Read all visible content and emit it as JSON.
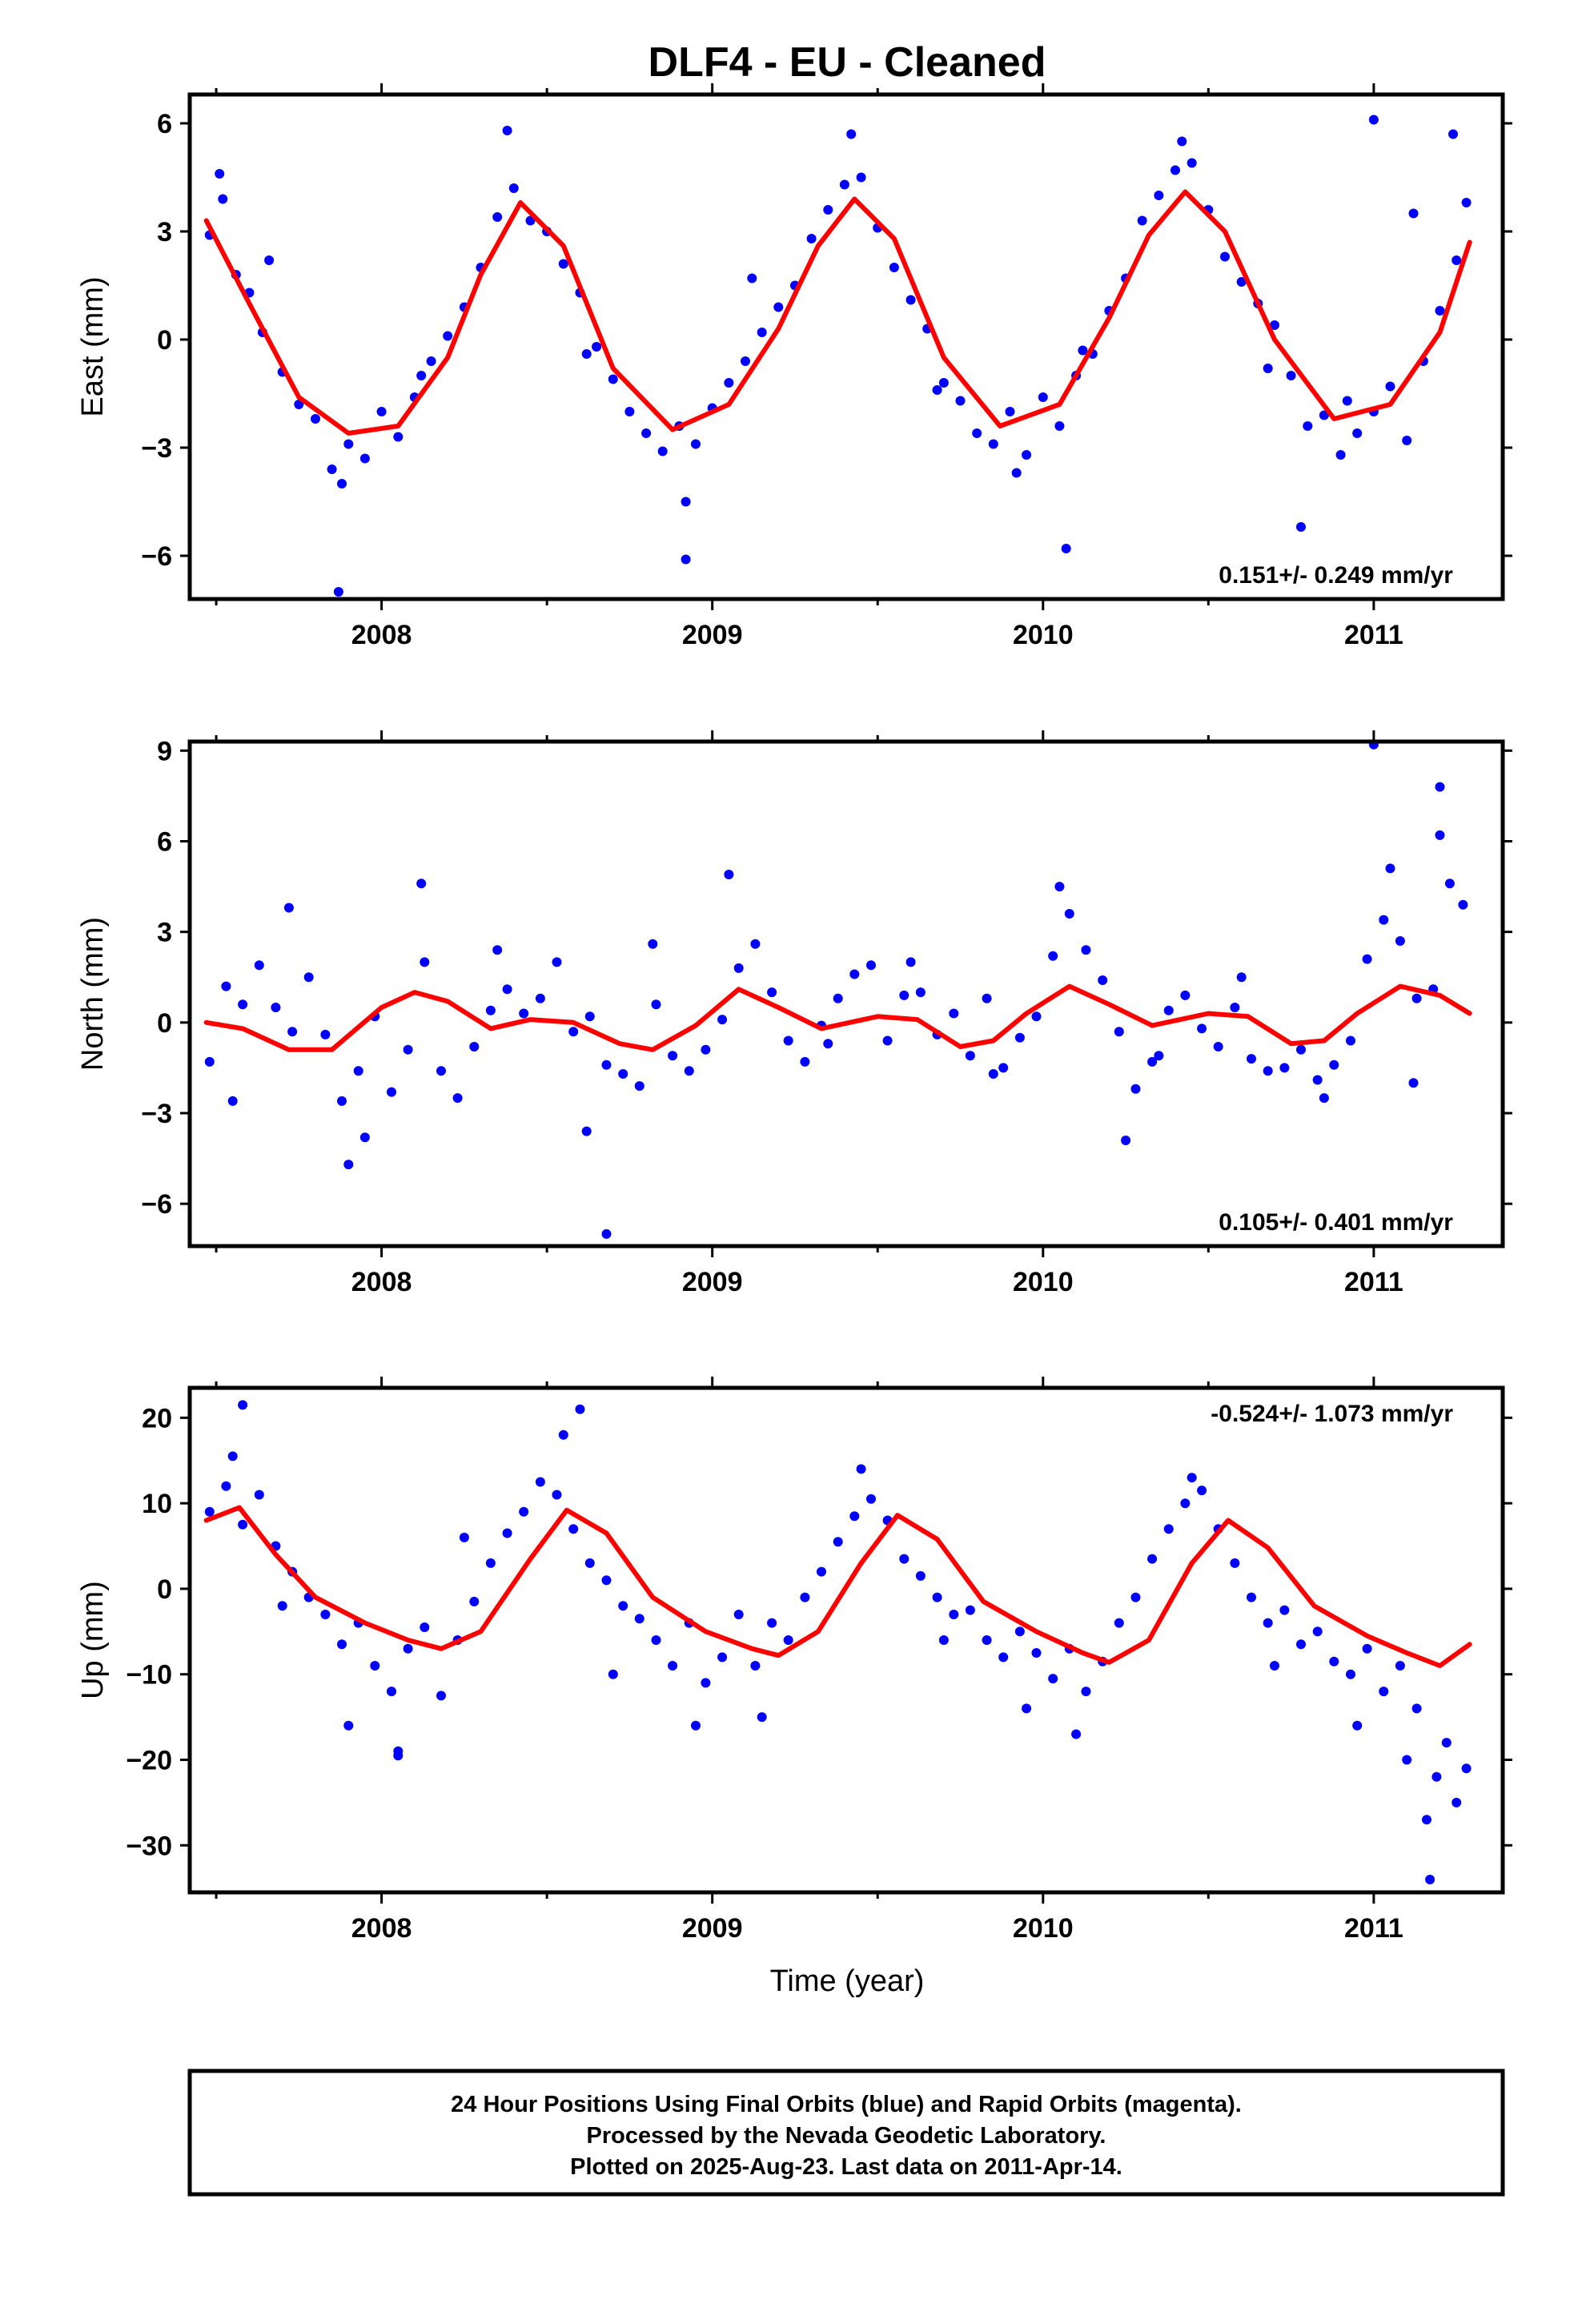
{
  "title": "DLF4  - EU - Cleaned",
  "xlabel": "Time (year)",
  "footer": {
    "line1": "24 Hour Positions Using Final Orbits (blue) and Rapid Orbits (magenta).",
    "line2": "Processed by the Nevada Geodetic Laboratory.",
    "line3": "Plotted on 2025-Aug-23. Last data on 2011-Apr-14."
  },
  "colors": {
    "points": "#0000ff",
    "fit": "#ff0000",
    "frame": "#000000"
  },
  "chart_data": [
    {
      "type": "scatter",
      "name": "East",
      "ylabel": "East (mm)",
      "rate": "0.151+/- 0.249 mm/yr",
      "rate_position": "bottom-right",
      "xlim": [
        2007.42,
        2011.39
      ],
      "ylim": [
        -7.2,
        6.8
      ],
      "x_ticks": [
        "2008",
        "2009",
        "2010",
        "2011"
      ],
      "y_ticks": [
        "6",
        "3",
        "0",
        "−3",
        "−6"
      ],
      "y_tick_values": [
        6,
        3,
        0,
        -3,
        -6
      ],
      "fit": {
        "x": [
          2007.47,
          2007.6,
          2007.75,
          2007.9,
          2008.05,
          2008.2,
          2008.3,
          2008.42,
          2008.55,
          2008.7,
          2008.88,
          2009.05,
          2009.2,
          2009.32,
          2009.43,
          2009.55,
          2009.7,
          2009.87,
          2010.05,
          2010.2,
          2010.32,
          2010.43,
          2010.55,
          2010.7,
          2010.88,
          2011.05,
          2011.2,
          2011.29
        ],
        "y": [
          3.3,
          1.0,
          -1.6,
          -2.6,
          -2.4,
          -0.5,
          1.8,
          3.8,
          2.6,
          -0.8,
          -2.5,
          -1.8,
          0.3,
          2.6,
          3.9,
          2.8,
          -0.5,
          -2.4,
          -1.8,
          0.6,
          2.9,
          4.1,
          3.0,
          0.0,
          -2.2,
          -1.8,
          0.2,
          2.7
        ]
      },
      "points": {
        "x": [
          2007.48,
          2007.52,
          2007.56,
          2007.6,
          2007.64,
          2007.7,
          2007.75,
          2007.8,
          2007.85,
          2007.9,
          2007.95,
          2008.0,
          2008.05,
          2008.1,
          2008.15,
          2008.2,
          2008.25,
          2008.3,
          2008.35,
          2008.4,
          2008.45,
          2008.5,
          2008.55,
          2008.6,
          2008.65,
          2008.7,
          2008.75,
          2008.8,
          2008.85,
          2008.9,
          2008.95,
          2009.0,
          2009.05,
          2009.1,
          2009.15,
          2009.2,
          2009.25,
          2009.3,
          2009.35,
          2009.4,
          2009.45,
          2009.5,
          2009.55,
          2009.6,
          2009.65,
          2009.7,
          2009.75,
          2009.8,
          2009.85,
          2009.9,
          2009.95,
          2010.0,
          2010.05,
          2010.1,
          2010.15,
          2010.2,
          2010.25,
          2010.3,
          2010.35,
          2010.4,
          2010.45,
          2010.5,
          2010.55,
          2010.6,
          2010.65,
          2010.7,
          2010.75,
          2010.8,
          2010.85,
          2010.9,
          2010.95,
          2011.0,
          2011.05,
          2011.1,
          2011.15,
          2011.2,
          2011.25,
          2011.28,
          2007.51,
          2007.66,
          2007.88,
          2008.12,
          2008.38,
          2008.62,
          2008.92,
          2009.12,
          2009.42,
          2009.68,
          2009.92,
          2010.12,
          2010.42,
          2010.68,
          2010.92,
          2011.12,
          2007.87,
          2008.92,
          2010.07,
          2010.78,
          2011.0,
          2011.24
        ],
        "y": [
          2.9,
          3.9,
          1.8,
          1.3,
          0.2,
          -0.9,
          -1.8,
          -2.2,
          -3.6,
          -2.9,
          -3.3,
          -2.0,
          -2.7,
          -1.6,
          -0.6,
          0.1,
          0.9,
          2.0,
          3.4,
          4.2,
          3.3,
          3.0,
          2.1,
          1.3,
          -0.2,
          -1.1,
          -2.0,
          -2.6,
          -3.1,
          -2.4,
          -2.9,
          -1.9,
          -1.2,
          -0.6,
          0.2,
          0.9,
          1.5,
          2.8,
          3.6,
          4.3,
          4.5,
          3.1,
          2.0,
          1.1,
          0.3,
          -1.2,
          -1.7,
          -2.6,
          -2.9,
          -2.0,
          -3.2,
          -1.6,
          -2.4,
          -1.0,
          -0.4,
          0.8,
          1.7,
          3.3,
          4.0,
          4.7,
          4.9,
          3.6,
          2.3,
          1.6,
          1.0,
          0.4,
          -1.0,
          -2.4,
          -2.1,
          -3.2,
          -2.6,
          -2.0,
          -1.3,
          -2.8,
          -0.6,
          0.8,
          2.2,
          3.8,
          4.6,
          2.2,
          -4.0,
          -1.0,
          5.8,
          -0.4,
          -4.5,
          1.7,
          5.7,
          -1.4,
          -3.7,
          -0.3,
          5.5,
          -0.8,
          -1.7,
          3.5,
          -7.0,
          -6.1,
          -5.8,
          -5.2,
          6.1,
          5.7
        ]
      }
    },
    {
      "type": "scatter",
      "name": "North",
      "ylabel": "North (mm)",
      "rate": "0.105+/- 0.401 mm/yr",
      "rate_position": "bottom-right",
      "xlim": [
        2007.42,
        2011.39
      ],
      "ylim": [
        -7.4,
        9.3
      ],
      "x_ticks": [
        "2008",
        "2009",
        "2010",
        "2011"
      ],
      "y_ticks": [
        "9",
        "6",
        "3",
        "0",
        "−3",
        "−6"
      ],
      "y_tick_values": [
        9,
        6,
        3,
        0,
        -3,
        -6
      ],
      "fit": {
        "x": [
          2007.47,
          2007.58,
          2007.72,
          2007.85,
          2008.0,
          2008.1,
          2008.2,
          2008.33,
          2008.45,
          2008.58,
          2008.72,
          2008.82,
          2008.95,
          2009.08,
          2009.2,
          2009.33,
          2009.5,
          2009.62,
          2009.75,
          2009.85,
          2009.95,
          2010.08,
          2010.2,
          2010.33,
          2010.5,
          2010.62,
          2010.75,
          2010.85,
          2010.95,
          2011.08,
          2011.2,
          2011.29
        ],
        "y": [
          0.0,
          -0.2,
          -0.9,
          -0.9,
          0.5,
          1.0,
          0.7,
          -0.2,
          0.1,
          0.0,
          -0.7,
          -0.9,
          -0.1,
          1.1,
          0.5,
          -0.2,
          0.2,
          0.1,
          -0.8,
          -0.6,
          0.3,
          1.2,
          0.6,
          -0.1,
          0.3,
          0.2,
          -0.7,
          -0.6,
          0.3,
          1.2,
          0.9,
          0.3
        ]
      },
      "points": {
        "x": [
          2007.48,
          2007.53,
          2007.58,
          2007.63,
          2007.68,
          2007.73,
          2007.78,
          2007.83,
          2007.88,
          2007.93,
          2007.98,
          2008.03,
          2008.08,
          2008.13,
          2008.18,
          2008.23,
          2008.28,
          2008.33,
          2008.38,
          2008.43,
          2008.48,
          2008.53,
          2008.58,
          2008.63,
          2008.68,
          2008.73,
          2008.78,
          2008.83,
          2008.88,
          2008.93,
          2008.98,
          2009.03,
          2009.08,
          2009.13,
          2009.18,
          2009.23,
          2009.28,
          2009.33,
          2009.38,
          2009.43,
          2009.48,
          2009.53,
          2009.58,
          2009.63,
          2009.68,
          2009.73,
          2009.78,
          2009.83,
          2009.88,
          2009.93,
          2009.98,
          2010.03,
          2010.08,
          2010.13,
          2010.18,
          2010.23,
          2010.28,
          2010.33,
          2010.38,
          2010.43,
          2010.48,
          2010.53,
          2010.58,
          2010.63,
          2010.68,
          2010.73,
          2010.78,
          2010.83,
          2010.88,
          2010.93,
          2010.98,
          2011.03,
          2011.08,
          2011.13,
          2011.18,
          2011.23,
          2011.27,
          2007.55,
          2007.72,
          2007.95,
          2008.12,
          2008.35,
          2008.62,
          2008.82,
          2009.05,
          2009.35,
          2009.6,
          2009.85,
          2010.05,
          2010.35,
          2010.6,
          2010.85,
          2011.05,
          2011.2,
          2007.9,
          2008.68,
          2010.25,
          2011.12,
          2011.0,
          2011.2
        ],
        "y": [
          -1.3,
          1.2,
          0.6,
          1.9,
          0.5,
          -0.3,
          1.5,
          -0.4,
          -2.6,
          -1.6,
          0.2,
          -2.3,
          -0.9,
          2.0,
          -1.6,
          -2.5,
          -0.8,
          0.4,
          1.1,
          0.3,
          0.8,
          2.0,
          -0.3,
          0.2,
          -1.4,
          -1.7,
          -2.1,
          0.6,
          -1.1,
          -1.6,
          -0.9,
          0.1,
          1.8,
          2.6,
          1.0,
          -0.6,
          -1.3,
          -0.1,
          0.8,
          1.6,
          1.9,
          -0.6,
          0.9,
          1.0,
          -0.4,
          0.3,
          -1.1,
          0.8,
          -1.5,
          -0.5,
          0.2,
          2.2,
          3.6,
          2.4,
          1.4,
          -0.3,
          -2.2,
          -1.3,
          0.4,
          0.9,
          -0.2,
          -0.8,
          0.5,
          -1.2,
          -1.6,
          -1.5,
          -0.9,
          -1.9,
          -1.4,
          -0.6,
          2.1,
          3.4,
          2.7,
          0.8,
          1.1,
          4.6,
          3.9,
          -2.6,
          3.8,
          -3.8,
          4.6,
          2.4,
          -3.6,
          2.6,
          4.9,
          -0.7,
          2.0,
          -1.7,
          4.5,
          -1.1,
          1.5,
          -2.5,
          5.1,
          6.2,
          -4.7,
          -7.0,
          -3.9,
          -2.0,
          9.2,
          7.8
        ]
      }
    },
    {
      "type": "scatter",
      "name": "Up",
      "ylabel": "Up (mm)",
      "rate": "-0.524+/- 1.073 mm/yr",
      "rate_position": "top-right",
      "xlim": [
        2007.42,
        2011.39
      ],
      "ylim": [
        -35.5,
        23.5
      ],
      "x_ticks": [
        "2008",
        "2009",
        "2010",
        "2011"
      ],
      "y_ticks": [
        "20",
        "10",
        "0",
        "−10",
        "−20",
        "−30"
      ],
      "y_tick_values": [
        20,
        10,
        0,
        -10,
        -20,
        -30
      ],
      "fit": {
        "x": [
          2007.47,
          2007.57,
          2007.68,
          2007.8,
          2007.95,
          2008.08,
          2008.18,
          2008.3,
          2008.45,
          2008.56,
          2008.68,
          2008.82,
          2008.98,
          2009.12,
          2009.2,
          2009.32,
          2009.45,
          2009.56,
          2009.68,
          2009.82,
          2009.98,
          2010.12,
          2010.2,
          2010.32,
          2010.45,
          2010.56,
          2010.68,
          2010.82,
          2010.98,
          2011.1,
          2011.2,
          2011.29
        ],
        "y": [
          8.0,
          9.5,
          4.0,
          -1.0,
          -4.0,
          -6.0,
          -7.0,
          -5.0,
          3.5,
          9.2,
          6.5,
          -1.0,
          -5.0,
          -7.0,
          -7.8,
          -5.0,
          3.0,
          8.6,
          5.8,
          -1.5,
          -5.0,
          -7.5,
          -8.6,
          -6.0,
          3.0,
          8.0,
          4.8,
          -2.0,
          -5.5,
          -7.5,
          -9.0,
          -6.5
        ]
      },
      "points": {
        "x": [
          2007.48,
          2007.53,
          2007.58,
          2007.63,
          2007.68,
          2007.73,
          2007.78,
          2007.83,
          2007.88,
          2007.93,
          2007.98,
          2008.03,
          2008.08,
          2008.13,
          2008.18,
          2008.23,
          2008.28,
          2008.33,
          2008.38,
          2008.43,
          2008.48,
          2008.53,
          2008.58,
          2008.63,
          2008.68,
          2008.73,
          2008.78,
          2008.83,
          2008.88,
          2008.93,
          2008.98,
          2009.03,
          2009.08,
          2009.13,
          2009.18,
          2009.23,
          2009.28,
          2009.33,
          2009.38,
          2009.43,
          2009.48,
          2009.53,
          2009.58,
          2009.63,
          2009.68,
          2009.73,
          2009.78,
          2009.83,
          2009.88,
          2009.93,
          2009.98,
          2010.03,
          2010.08,
          2010.13,
          2010.18,
          2010.23,
          2010.28,
          2010.33,
          2010.38,
          2010.43,
          2010.48,
          2010.53,
          2010.58,
          2010.63,
          2010.68,
          2010.73,
          2010.78,
          2010.83,
          2010.88,
          2010.93,
          2010.98,
          2011.03,
          2011.08,
          2011.13,
          2011.16,
          2011.19,
          2011.22,
          2011.25,
          2011.28,
          2007.55,
          2007.7,
          2007.9,
          2008.05,
          2008.25,
          2008.55,
          2008.7,
          2008.95,
          2009.15,
          2009.45,
          2009.7,
          2009.95,
          2010.1,
          2010.45,
          2010.7,
          2010.95,
          2011.1,
          2007.58,
          2008.6,
          2008.05,
          2011.17
        ],
        "y": [
          9.0,
          12.0,
          7.5,
          11.0,
          5.0,
          2.0,
          -1.0,
          -3.0,
          -6.5,
          -4.0,
          -9.0,
          -12.0,
          -7.0,
          -4.5,
          -12.5,
          -6.0,
          -1.5,
          3.0,
          6.5,
          9.0,
          12.5,
          11.0,
          7.0,
          3.0,
          1.0,
          -2.0,
          -3.5,
          -6.0,
          -9.0,
          -4.0,
          -11.0,
          -8.0,
          -3.0,
          -9.0,
          -4.0,
          -6.0,
          -1.0,
          2.0,
          5.5,
          8.5,
          10.5,
          8.0,
          3.5,
          1.5,
          -1.0,
          -3.0,
          -2.5,
          -6.0,
          -8.0,
          -5.0,
          -7.5,
          -10.5,
          -7.0,
          -12.0,
          -8.5,
          -4.0,
          -1.0,
          3.5,
          7.0,
          10.0,
          11.5,
          7.0,
          3.0,
          -1.0,
          -4.0,
          -2.5,
          -6.5,
          -5.0,
          -8.5,
          -10.0,
          -7.0,
          -12.0,
          -9.0,
          -14.0,
          -27.0,
          -22.0,
          -18.0,
          -25.0,
          -21.0,
          15.5,
          -2.0,
          -16.0,
          -19.0,
          6.0,
          18.0,
          -10.0,
          -16.0,
          -15.0,
          14.0,
          -6.0,
          -14.0,
          -17.0,
          13.0,
          -9.0,
          -16.0,
          -20.0,
          21.5,
          21.0,
          -19.5,
          -34.0
        ]
      }
    }
  ]
}
